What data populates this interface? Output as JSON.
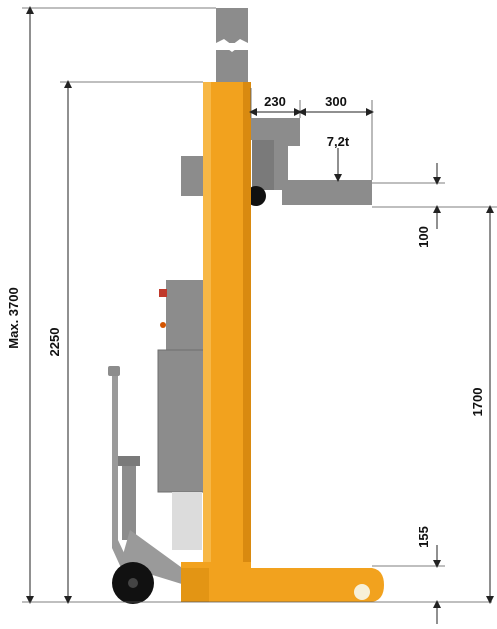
{
  "dimensions": {
    "max_height": "Max. 3700",
    "mast_height": "2250",
    "fork_offset": "230",
    "load_center": "300",
    "capacity": "7,2t",
    "fork_thickness": "100",
    "lift_height": "1700",
    "base_height": "155"
  },
  "colors": {
    "mast": "#f2a21e",
    "mast_shadow": "#d98a10",
    "gray_parts": "#8c8c8c",
    "gray_dark": "#6e6e6e",
    "wheel": "#111111",
    "dimension_lines": "#222222"
  }
}
